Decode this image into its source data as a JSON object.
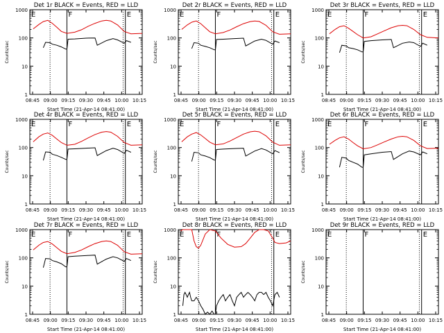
{
  "colors": {
    "events": "#000000",
    "lld": "#dd0000",
    "axes": "#000000",
    "background": "#ffffff"
  },
  "common": {
    "ylabel": "Counts/sec",
    "xlabel": "Start Time (21-Apr-14 08:41:00)",
    "x_ticks": [
      "08:45",
      "09:00",
      "09:15",
      "09:30",
      "09:45",
      "10:00",
      "10:15"
    ],
    "y_ticks": [
      "1",
      "10",
      "100",
      "1000"
    ],
    "y_scale": "log",
    "ylim": [
      1,
      1000
    ],
    "xlim_minutes_after_start": [
      0,
      100
    ],
    "markers": [
      {
        "label": "E",
        "x": 0,
        "style": "solid"
      },
      {
        "label": "F",
        "x": 33,
        "style": "solid"
      },
      {
        "label": "E",
        "x": 85,
        "style": "solid"
      }
    ],
    "dotted_lines_x": [
      18,
      83
    ]
  },
  "chart_data": [
    {
      "type": "line",
      "title": "Det 1r BLACK = Events, RED = LLD",
      "y_scale": "log",
      "series": [
        {
          "name": "Events",
          "x": [
            12,
            14,
            18,
            20,
            24,
            28,
            32,
            33,
            34,
            40,
            50,
            58,
            60,
            68,
            74,
            78,
            84,
            86,
            90
          ],
          "y": [
            45,
            70,
            68,
            60,
            55,
            48,
            40,
            40,
            90,
            92,
            98,
            100,
            55,
            80,
            95,
            85,
            65,
            80,
            70
          ]
        },
        {
          "name": "LLD",
          "x": [
            3,
            8,
            12,
            16,
            20,
            24,
            28,
            33,
            40,
            46,
            52,
            58,
            64,
            68,
            72,
            78,
            84,
            90,
            100
          ],
          "y": [
            210,
            300,
            380,
            420,
            330,
            240,
            170,
            145,
            160,
            195,
            260,
            330,
            400,
            420,
            400,
            290,
            170,
            140,
            145
          ]
        }
      ]
    },
    {
      "type": "line",
      "title": "Det 2r BLACK = Events, RED = LLD",
      "y_scale": "log",
      "series": [
        {
          "name": "Events",
          "x": [
            12,
            14,
            18,
            20,
            24,
            28,
            32,
            33,
            34,
            40,
            50,
            58,
            60,
            68,
            74,
            78,
            84,
            86,
            90
          ],
          "y": [
            42,
            68,
            65,
            55,
            50,
            45,
            38,
            38,
            88,
            90,
            95,
            98,
            52,
            78,
            90,
            82,
            60,
            78,
            68
          ]
        },
        {
          "name": "LLD",
          "x": [
            3,
            8,
            12,
            16,
            20,
            24,
            28,
            33,
            40,
            46,
            52,
            58,
            64,
            68,
            72,
            78,
            84,
            90,
            100
          ],
          "y": [
            200,
            290,
            360,
            400,
            320,
            230,
            165,
            140,
            155,
            190,
            250,
            320,
            380,
            400,
            385,
            280,
            165,
            135,
            140
          ]
        }
      ]
    },
    {
      "type": "line",
      "title": "Det 3r BLACK = Events, RED = LLD",
      "y_scale": "log",
      "series": [
        {
          "name": "Events",
          "x": [
            12,
            14,
            18,
            20,
            24,
            28,
            32,
            33,
            34,
            40,
            50,
            58,
            60,
            68,
            74,
            78,
            84,
            86,
            90
          ],
          "y": [
            30,
            55,
            52,
            45,
            42,
            38,
            32,
            32,
            75,
            80,
            85,
            88,
            45,
            65,
            72,
            68,
            50,
            65,
            55
          ]
        },
        {
          "name": "LLD",
          "x": [
            3,
            8,
            12,
            16,
            20,
            24,
            28,
            33,
            40,
            46,
            52,
            58,
            64,
            68,
            72,
            78,
            84,
            90,
            100
          ],
          "y": [
            140,
            200,
            250,
            270,
            220,
            170,
            130,
            100,
            110,
            140,
            180,
            230,
            270,
            280,
            270,
            200,
            130,
            105,
            100
          ]
        }
      ]
    },
    {
      "type": "line",
      "title": "Det 4r BLACK = Events, RED = LLD",
      "y_scale": "log",
      "series": [
        {
          "name": "Events",
          "x": [
            12,
            14,
            18,
            20,
            24,
            28,
            32,
            33,
            34,
            40,
            50,
            58,
            60,
            68,
            74,
            78,
            84,
            86,
            90
          ],
          "y": [
            35,
            70,
            68,
            58,
            52,
            45,
            38,
            38,
            88,
            90,
            95,
            98,
            52,
            78,
            95,
            85,
            62,
            80,
            68
          ]
        },
        {
          "name": "LLD",
          "x": [
            3,
            8,
            12,
            16,
            20,
            24,
            28,
            33,
            40,
            46,
            52,
            58,
            64,
            68,
            72,
            78,
            84,
            90,
            100
          ],
          "y": [
            160,
            240,
            300,
            330,
            270,
            200,
            150,
            120,
            130,
            165,
            220,
            290,
            350,
            370,
            350,
            250,
            150,
            120,
            125
          ]
        }
      ]
    },
    {
      "type": "line",
      "title": "Det 5r BLACK = Events, RED = LLD",
      "y_scale": "log",
      "series": [
        {
          "name": "Events",
          "x": [
            12,
            14,
            18,
            20,
            24,
            28,
            32,
            33,
            34,
            40,
            50,
            58,
            60,
            68,
            74,
            78,
            84,
            86,
            90
          ],
          "y": [
            32,
            68,
            65,
            55,
            50,
            44,
            36,
            36,
            85,
            88,
            92,
            95,
            50,
            75,
            92,
            82,
            60,
            78,
            66
          ]
        },
        {
          "name": "LLD",
          "x": [
            3,
            8,
            12,
            16,
            20,
            24,
            28,
            33,
            40,
            46,
            52,
            58,
            64,
            68,
            72,
            78,
            84,
            90,
            100
          ],
          "y": [
            160,
            240,
            300,
            340,
            280,
            210,
            155,
            125,
            135,
            170,
            225,
            300,
            360,
            380,
            360,
            260,
            155,
            120,
            125
          ]
        }
      ]
    },
    {
      "type": "line",
      "title": "Det 6r BLACK = Events, RED = LLD",
      "y_scale": "log",
      "series": [
        {
          "name": "Events",
          "x": [
            12,
            14,
            18,
            20,
            24,
            28,
            32,
            33,
            34,
            40,
            50,
            58,
            60,
            68,
            74,
            78,
            84,
            86,
            90
          ],
          "y": [
            20,
            45,
            42,
            35,
            30,
            26,
            20,
            20,
            55,
            60,
            68,
            72,
            38,
            60,
            75,
            70,
            55,
            70,
            60
          ]
        },
        {
          "name": "LLD",
          "x": [
            3,
            8,
            12,
            16,
            20,
            24,
            28,
            33,
            40,
            46,
            52,
            58,
            64,
            68,
            72,
            78,
            84,
            90,
            100
          ],
          "y": [
            130,
            180,
            220,
            240,
            200,
            150,
            115,
            90,
            100,
            125,
            160,
            200,
            240,
            250,
            240,
            180,
            115,
            92,
            95
          ]
        }
      ]
    },
    {
      "type": "line",
      "title": "Det 7r BLACK = Events, RED = LLD",
      "y_scale": "log",
      "series": [
        {
          "name": "Events",
          "x": [
            12,
            14,
            18,
            20,
            24,
            28,
            32,
            33,
            34,
            40,
            50,
            58,
            60,
            68,
            74,
            78,
            84,
            86,
            90
          ],
          "y": [
            45,
            95,
            92,
            80,
            72,
            62,
            48,
            48,
            110,
            115,
            120,
            125,
            60,
            90,
            110,
            100,
            75,
            95,
            80
          ]
        },
        {
          "name": "LLD",
          "x": [
            3,
            8,
            12,
            16,
            20,
            24,
            28,
            33,
            40,
            46,
            52,
            58,
            64,
            68,
            72,
            78,
            84,
            90,
            100
          ],
          "y": [
            190,
            280,
            350,
            380,
            310,
            230,
            170,
            140,
            155,
            190,
            250,
            320,
            380,
            400,
            380,
            280,
            165,
            135,
            140
          ]
        }
      ]
    },
    {
      "type": "line",
      "title": "Det 8r BLACK = Events, RED = LLD",
      "y_scale": "log",
      "series": [
        {
          "name": "Events",
          "x": [
            4,
            5,
            6,
            7,
            8,
            9,
            10,
            11,
            12,
            14,
            16,
            18,
            20,
            22,
            24,
            26,
            28,
            30,
            32,
            33,
            34,
            36,
            38,
            40,
            42,
            44,
            46,
            48,
            50,
            52,
            54,
            56,
            58,
            60,
            62,
            64,
            66,
            68,
            70,
            72,
            74,
            76,
            78,
            80,
            82,
            84,
            86,
            88,
            90
          ],
          "y": [
            2,
            5,
            6,
            5,
            4,
            5,
            6,
            4,
            3,
            3,
            4,
            3,
            2,
            1.5,
            1,
            1.2,
            1,
            1.3,
            1,
            1,
            2,
            3,
            4,
            5,
            3,
            4,
            5,
            3,
            2,
            4,
            5,
            6,
            4,
            5,
            6,
            5,
            4,
            3,
            5,
            6,
            6,
            5,
            6,
            4,
            3,
            2,
            5,
            6,
            4
          ]
        },
        {
          "name": "LLD",
          "x": [
            2,
            4,
            6,
            8,
            10,
            12,
            14,
            16,
            18,
            20,
            24,
            28,
            33,
            38,
            44,
            50,
            56,
            60,
            64,
            68,
            72,
            76,
            80,
            84,
            86,
            90,
            96,
            100
          ],
          "y": [
            900,
            1000,
            1000,
            1000,
            1000,
            1000,
            400,
            250,
            220,
            280,
            700,
            1000,
            900,
            500,
            300,
            240,
            250,
            320,
            500,
            800,
            1000,
            1000,
            900,
            500,
            350,
            320,
            340,
            400
          ]
        }
      ]
    },
    {
      "type": "line",
      "title": "Det 9r BLACK = Events, RED = LLD",
      "y_scale": "log",
      "series": [
        {
          "name": "Events",
          "x": [],
          "y": []
        },
        {
          "name": "LLD",
          "x": [],
          "y": []
        }
      ]
    }
  ]
}
